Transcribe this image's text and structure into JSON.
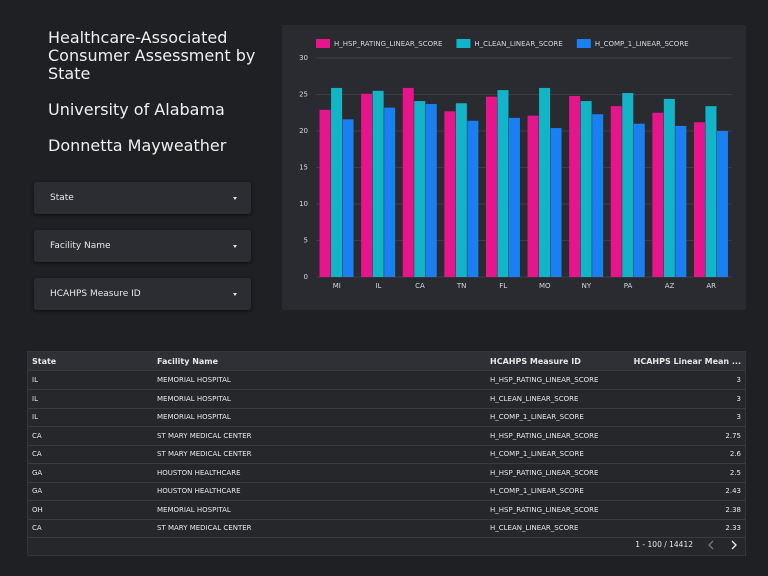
{
  "header": {
    "title": "Healthcare-Associated Consumer Assessment by State",
    "subtitle": "University of Alabama",
    "author": "Donnetta Mayweather"
  },
  "filters": [
    "State",
    "Facility Name",
    "HCAHPS Measure ID"
  ],
  "chart_data": {
    "type": "bar",
    "categories": [
      "MI",
      "IL",
      "CA",
      "TN",
      "FL",
      "MO",
      "NY",
      "PA",
      "AZ",
      "AR"
    ],
    "series": [
      {
        "name": "H_HSP_RATING_LINEAR_SCORE",
        "color": "#e6158c",
        "values": [
          22.9,
          25.1,
          25.9,
          22.7,
          24.7,
          22.1,
          24.8,
          23.4,
          22.5,
          21.2
        ]
      },
      {
        "name": "H_CLEAN_LINEAR_SCORE",
        "color": "#12b5c7",
        "values": [
          25.9,
          25.5,
          24.1,
          23.8,
          25.6,
          25.9,
          24.1,
          25.2,
          24.4,
          23.4
        ]
      },
      {
        "name": "H_COMP_1_LINEAR_SCORE",
        "color": "#1a7ff0",
        "values": [
          21.6,
          23.2,
          23.7,
          21.4,
          21.8,
          20.4,
          22.3,
          21.0,
          20.7,
          20.0
        ]
      }
    ],
    "ylim": [
      0,
      30
    ],
    "yticks": [
      0,
      5,
      10,
      15,
      20,
      25,
      30
    ],
    "grid": true
  },
  "table": {
    "columns": [
      "State",
      "Facility Name",
      "HCAHPS Measure ID",
      "HCAHPS Linear Mean ..."
    ],
    "rows": [
      [
        "IL",
        "MEMORIAL HOSPITAL",
        "H_HSP_RATING_LINEAR_SCORE",
        3
      ],
      [
        "IL",
        "MEMORIAL HOSPITAL",
        "H_CLEAN_LINEAR_SCORE",
        3
      ],
      [
        "IL",
        "MEMORIAL HOSPITAL",
        "H_COMP_1_LINEAR_SCORE",
        3
      ],
      [
        "CA",
        "ST MARY MEDICAL CENTER",
        "H_HSP_RATING_LINEAR_SCORE",
        2.75
      ],
      [
        "CA",
        "ST MARY MEDICAL CENTER",
        "H_COMP_1_LINEAR_SCORE",
        2.6
      ],
      [
        "GA",
        "HOUSTON HEALTHCARE",
        "H_HSP_RATING_LINEAR_SCORE",
        2.5
      ],
      [
        "GA",
        "HOUSTON HEALTHCARE",
        "H_COMP_1_LINEAR_SCORE",
        2.43
      ],
      [
        "OH",
        "MEMORIAL HOSPITAL",
        "H_HSP_RATING_LINEAR_SCORE",
        2.38
      ],
      [
        "CA",
        "ST MARY MEDICAL CENTER",
        "H_CLEAN_LINEAR_SCORE",
        2.33
      ]
    ]
  },
  "pagination": "1 - 100 / 14412"
}
